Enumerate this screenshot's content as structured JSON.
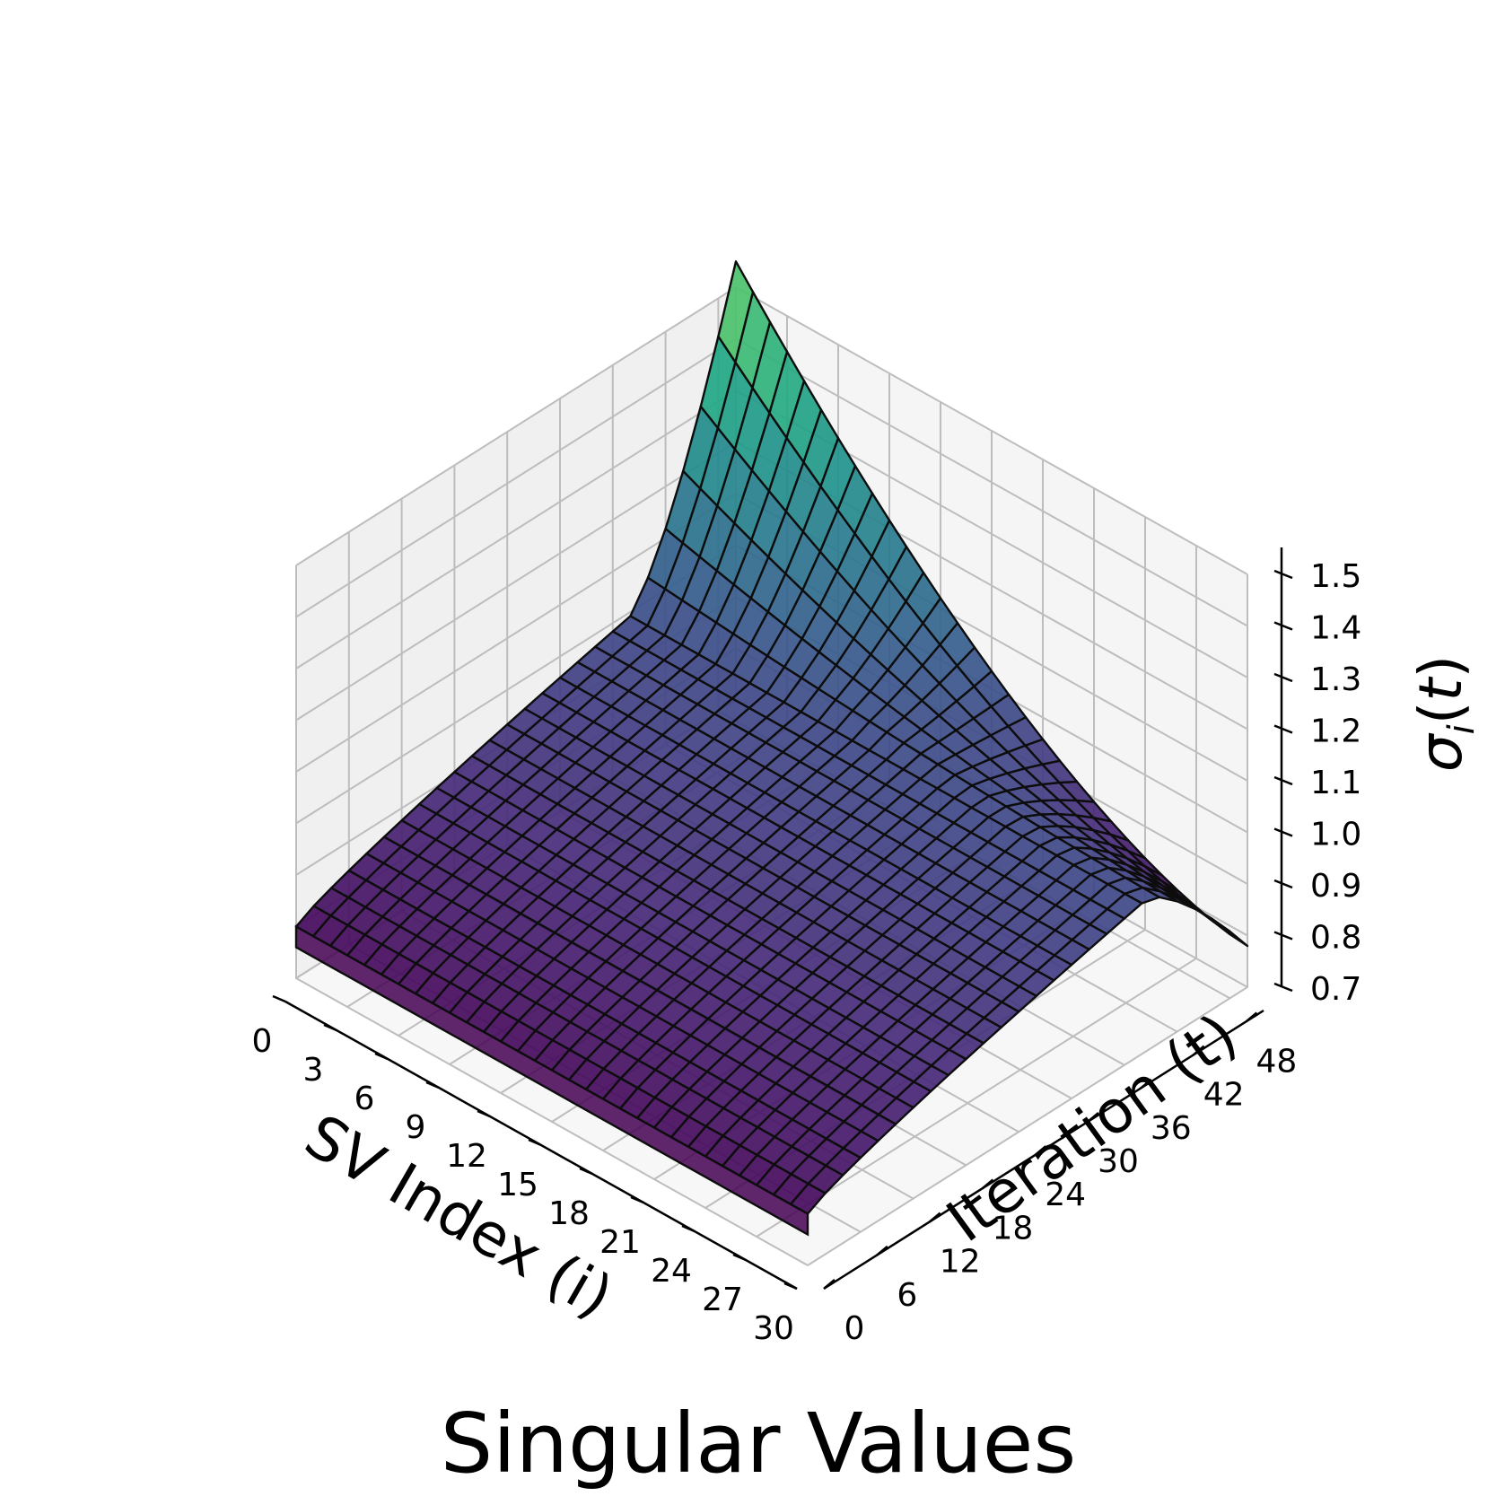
{
  "chart_data": {
    "type": "surface3d",
    "title": "Singular Values",
    "xlabel": "SV Index (i)",
    "ylabel": "Iteration (t)",
    "zlabel": "σi(t)",
    "xlim": [
      0,
      30
    ],
    "ylim": [
      0,
      50
    ],
    "zlim": [
      0.7,
      1.5
    ],
    "x_ticks": [
      "0",
      "3",
      "6",
      "9",
      "12",
      "15",
      "18",
      "21",
      "24",
      "27",
      "30"
    ],
    "y_ticks": [
      "0",
      "6",
      "12",
      "18",
      "24",
      "30",
      "36",
      "42",
      "48"
    ],
    "z_ticks": [
      "0.7",
      "0.8",
      "0.9",
      "1.0",
      "1.1",
      "1.2",
      "1.3",
      "1.4",
      "1.5"
    ],
    "colormap": "viridis",
    "grid": true,
    "x_step": 1,
    "y_step": 2,
    "surface": {
      "description_of_values": "sigma_i(t) on grid i=0..30, t=0..50 step 2",
      "start_value": 0.8,
      "end_value_at_i0": 1.55,
      "end_value_at_i30": 0.78,
      "plateau_value": 1.0
    }
  }
}
